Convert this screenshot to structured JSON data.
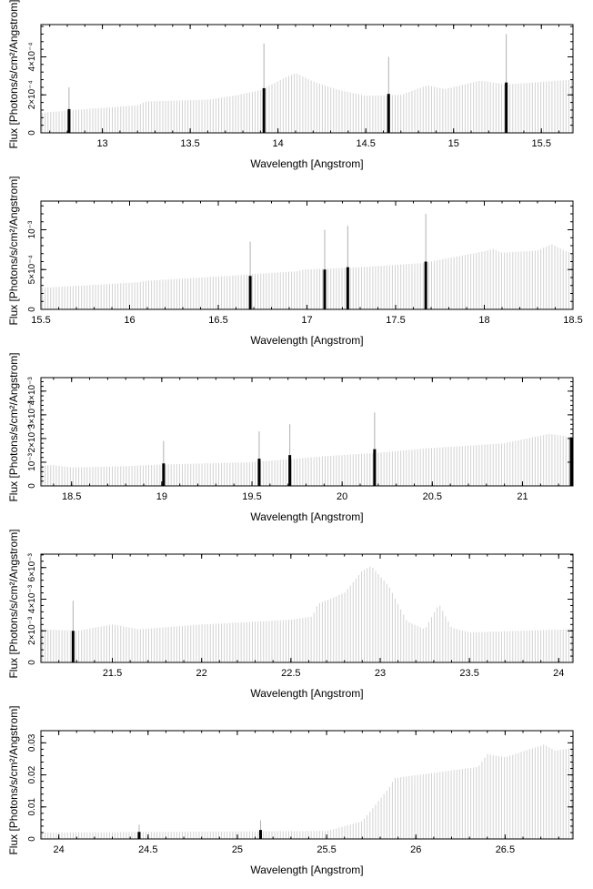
{
  "colors": {
    "spectrum": "#d2d2d2",
    "lines": "#000000",
    "frame": "#000000"
  },
  "chart_data": [
    {
      "type": "bar",
      "xlabel": "Wavelength [Angstrom]",
      "ylabel": "Flux [Photons/s/cm²/Angstrom]",
      "xlim": [
        12.65,
        15.68
      ],
      "ylim": [
        0,
        0.00057
      ],
      "xticks": [
        13,
        13.5,
        14,
        14.5,
        15,
        15.5
      ],
      "xtick_labels": [
        "13",
        "13.5",
        "14",
        "14.5",
        "15",
        "15.5"
      ],
      "yticks": [
        0,
        0.0002,
        0.0004
      ],
      "ytick_labels": [
        "0",
        "2×10⁻⁴",
        "4×10⁻⁴"
      ],
      "continuum": [
        [
          12.65,
          0.000105
        ],
        [
          12.9,
          0.000125
        ],
        [
          13.2,
          0.000145
        ],
        [
          13.25,
          0.000165
        ],
        [
          13.6,
          0.000175
        ],
        [
          13.75,
          0.000195
        ],
        [
          13.9,
          0.000225
        ],
        [
          14.05,
          0.000295
        ],
        [
          14.1,
          0.000315
        ],
        [
          14.2,
          0.00027
        ],
        [
          14.35,
          0.000225
        ],
        [
          14.5,
          0.000195
        ],
        [
          14.7,
          0.0002
        ],
        [
          14.85,
          0.00025
        ],
        [
          14.95,
          0.00023
        ],
        [
          15.15,
          0.000275
        ],
        [
          15.3,
          0.000255
        ],
        [
          15.68,
          0.00028
        ]
      ],
      "lines": [
        {
          "x": 12.81,
          "value": 0.000125,
          "peak": 0.00024
        },
        {
          "x": 13.92,
          "value": 0.000235,
          "peak": 0.00047
        },
        {
          "x": 14.63,
          "value": 0.000205,
          "peak": 0.0004
        },
        {
          "x": 15.3,
          "value": 0.000265,
          "peak": 0.00052
        }
      ]
    },
    {
      "type": "bar",
      "xlabel": "Wavelength [Angstrom]",
      "ylabel": "Flux [Photons/s/cm²/Angstrom]",
      "xlim": [
        15.5,
        18.5
      ],
      "ylim": [
        0,
        0.00136
      ],
      "xticks": [
        15.5,
        16,
        16.5,
        17,
        17.5,
        18,
        18.5
      ],
      "xtick_labels": [
        "15.5",
        "16",
        "16.5",
        "17",
        "17.5",
        "18",
        "18.5"
      ],
      "yticks": [
        0,
        0.0005,
        0.001
      ],
      "ytick_labels": [
        "0",
        "5×10⁻⁴",
        "10⁻³"
      ],
      "continuum": [
        [
          15.5,
          0.00027
        ],
        [
          16.05,
          0.00034
        ],
        [
          16.1,
          0.00036
        ],
        [
          16.55,
          0.00042
        ],
        [
          16.95,
          0.00048
        ],
        [
          16.98,
          0.0005
        ],
        [
          17.3,
          0.00053
        ],
        [
          17.65,
          0.00058
        ],
        [
          18.0,
          0.00073
        ],
        [
          18.05,
          0.00076
        ],
        [
          18.1,
          0.00071
        ],
        [
          18.3,
          0.00074
        ],
        [
          18.38,
          0.00082
        ],
        [
          18.45,
          0.00074
        ],
        [
          18.5,
          0.0007
        ]
      ],
      "lines": [
        {
          "x": 16.68,
          "value": 0.00042,
          "peak": 0.00085
        },
        {
          "x": 17.1,
          "value": 0.0005,
          "peak": 0.001
        },
        {
          "x": 17.23,
          "value": 0.00053,
          "peak": 0.00105
        },
        {
          "x": 17.67,
          "value": 0.0006,
          "peak": 0.0012
        }
      ]
    },
    {
      "type": "bar",
      "xlabel": "Wavelength [Angstrom]",
      "ylabel": "Flux [Photons/s/cm²/Angstrom]",
      "xlim": [
        18.33,
        21.28
      ],
      "ylim": [
        0,
        0.00457
      ],
      "xticks": [
        18.5,
        19,
        19.5,
        20,
        20.5,
        21
      ],
      "xtick_labels": [
        "18.5",
        "19",
        "19.5",
        "20",
        "20.5",
        "21"
      ],
      "yticks": [
        0,
        0.001,
        0.002,
        0.003,
        0.004
      ],
      "ytick_labels": [
        "0",
        "10⁻³",
        "2×10⁻³",
        "3×10⁻³",
        "4×10⁻³"
      ],
      "continuum": [
        [
          18.33,
          0.00085
        ],
        [
          18.4,
          0.00088
        ],
        [
          18.5,
          0.00078
        ],
        [
          18.75,
          0.00082
        ],
        [
          19.0,
          0.0009
        ],
        [
          19.5,
          0.001
        ],
        [
          19.9,
          0.00125
        ],
        [
          20.2,
          0.0014
        ],
        [
          20.5,
          0.0016
        ],
        [
          20.9,
          0.0018
        ],
        [
          21.15,
          0.0022
        ],
        [
          21.28,
          0.00205
        ]
      ],
      "lines": [
        {
          "x": 19.01,
          "value": 0.00095,
          "peak": 0.0019
        },
        {
          "x": 19.54,
          "value": 0.00115,
          "peak": 0.0023
        },
        {
          "x": 19.71,
          "value": 0.0013,
          "peak": 0.0026
        },
        {
          "x": 20.18,
          "value": 0.00155,
          "peak": 0.0031
        },
        {
          "x": 21.27,
          "value": 0.00205,
          "peak": 0.00205
        }
      ]
    },
    {
      "type": "bar",
      "xlabel": "Wavelength [Angstrom]",
      "ylabel": "Flux [Photons/s/cm²/Angstrom]",
      "xlim": [
        21.1,
        24.08
      ],
      "ylim": [
        0,
        0.00685
      ],
      "xticks": [
        21.5,
        22,
        22.5,
        23,
        23.5,
        24
      ],
      "xtick_labels": [
        "21.5",
        "22",
        "22.5",
        "23",
        "23.5",
        "24"
      ],
      "yticks": [
        0,
        0.002,
        0.004,
        0.006
      ],
      "ytick_labels": [
        "0",
        "2×10⁻³",
        "4×10⁻³",
        "6×10⁻³"
      ],
      "continuum": [
        [
          21.1,
          0.0021
        ],
        [
          21.3,
          0.002
        ],
        [
          21.5,
          0.0024
        ],
        [
          21.65,
          0.0021
        ],
        [
          22.0,
          0.0024
        ],
        [
          22.5,
          0.0027
        ],
        [
          22.62,
          0.0029
        ],
        [
          22.65,
          0.0037
        ],
        [
          22.8,
          0.0044
        ],
        [
          22.9,
          0.0058
        ],
        [
          22.95,
          0.0061
        ],
        [
          23.05,
          0.0048
        ],
        [
          23.15,
          0.0026
        ],
        [
          23.25,
          0.0021
        ],
        [
          23.33,
          0.0037
        ],
        [
          23.4,
          0.0022
        ],
        [
          23.5,
          0.0019
        ],
        [
          24.08,
          0.0021
        ]
      ],
      "lines": [
        {
          "x": 21.28,
          "value": 0.002,
          "peak": 0.0039
        }
      ]
    },
    {
      "type": "bar",
      "xlabel": "Wavelength [Angstrom]",
      "ylabel": "Flux [Photons/s/cm²/Angstrom]",
      "xlim": [
        23.9,
        26.88
      ],
      "ylim": [
        0,
        0.0338
      ],
      "xticks": [
        24,
        24.5,
        25,
        25.5,
        26,
        26.5
      ],
      "xtick_labels": [
        "24",
        "24.5",
        "25",
        "25.5",
        "26",
        "26.5"
      ],
      "yticks": [
        0,
        0.01,
        0.02,
        0.03
      ],
      "ytick_labels": [
        "0",
        "0.01",
        "0.02",
        "0.03"
      ],
      "continuum": [
        [
          23.9,
          0.002
        ],
        [
          25.5,
          0.0025
        ],
        [
          25.7,
          0.0055
        ],
        [
          25.85,
          0.016
        ],
        [
          25.88,
          0.019
        ],
        [
          26.35,
          0.0225
        ],
        [
          26.4,
          0.0265
        ],
        [
          26.5,
          0.0255
        ],
        [
          26.72,
          0.0295
        ],
        [
          26.78,
          0.0275
        ],
        [
          26.88,
          0.0285
        ]
      ],
      "lines": [
        {
          "x": 24.45,
          "value": 0.0022,
          "peak": 0.0044
        },
        {
          "x": 25.13,
          "value": 0.0028,
          "peak": 0.0058
        }
      ]
    }
  ]
}
